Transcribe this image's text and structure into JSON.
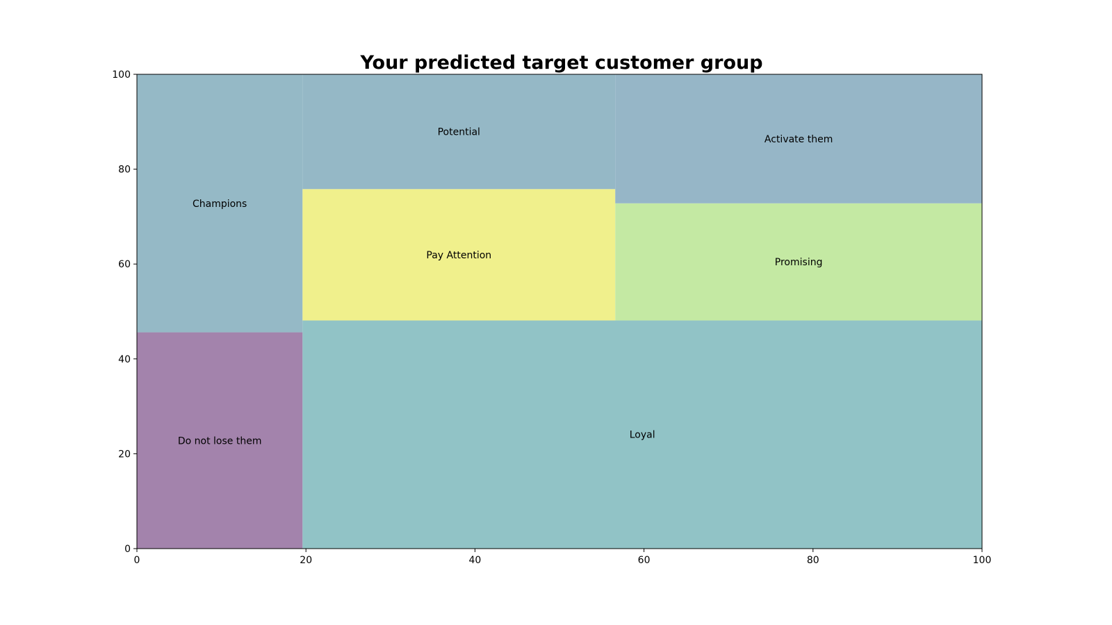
{
  "chart_data": {
    "type": "treemap",
    "title": "Your predicted target customer group",
    "xlim": [
      0,
      100
    ],
    "ylim": [
      0,
      100
    ],
    "x_ticks": [
      "0",
      "20",
      "40",
      "60",
      "80",
      "100"
    ],
    "y_ticks": [
      "0",
      "20",
      "40",
      "60",
      "80",
      "100"
    ],
    "rectangles": [
      {
        "label": "Do not lose them",
        "x": 0,
        "y": 0,
        "dx": 19.6,
        "dy": 45.6,
        "color": "#a383ac"
      },
      {
        "label": "Champions",
        "x": 0,
        "y": 45.6,
        "dx": 19.6,
        "dy": 54.4,
        "color": "#95b9c6"
      },
      {
        "label": "Loyal",
        "x": 19.6,
        "y": 0,
        "dx": 80.4,
        "dy": 48.1,
        "color": "#91c3c6"
      },
      {
        "label": "Pay Attention",
        "x": 19.6,
        "y": 48.1,
        "dx": 37.0,
        "dy": 27.7,
        "color": "#f0f08c"
      },
      {
        "label": "Potential",
        "x": 19.6,
        "y": 75.8,
        "dx": 37.0,
        "dy": 24.2,
        "color": "#95b8c6"
      },
      {
        "label": "Promising",
        "x": 56.6,
        "y": 48.1,
        "dx": 43.4,
        "dy": 24.7,
        "color": "#c4e9a3"
      },
      {
        "label": "Activate them",
        "x": 56.6,
        "y": 72.8,
        "dx": 43.4,
        "dy": 27.2,
        "color": "#96b6c7"
      }
    ]
  }
}
